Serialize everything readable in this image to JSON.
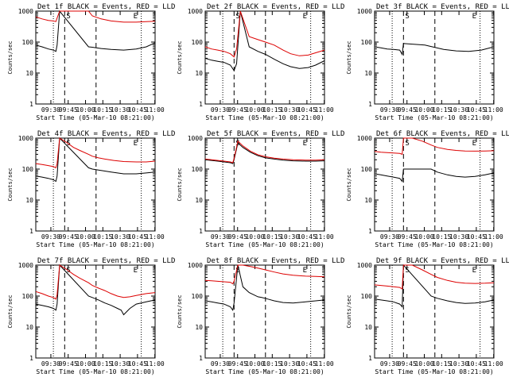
{
  "figure": {
    "ylabel": "Counts/sec",
    "xlabel": "Start Time (05-Mar-10 08:21:00)",
    "xticks": [
      "09:30",
      "09:45",
      "10:00",
      "10:15",
      "10:30",
      "10:45",
      "11:00"
    ],
    "yticks": [
      "1",
      "10",
      "100",
      "1000"
    ],
    "markers": {
      "start": "S",
      "end": "E"
    },
    "colors": {
      "events": "#000000",
      "lld": "#dd0000",
      "axis": "#000000"
    }
  },
  "chart_data": [
    {
      "type": "line",
      "title": "Det 1f BLACK = Events, RED = LLD",
      "xlim": [
        0,
        95
      ],
      "ylim": [
        1,
        1000
      ],
      "yscale": "log",
      "series": [
        {
          "name": "Events",
          "x": [
            0,
            5,
            10,
            14,
            16,
            17,
            19,
            42,
            45,
            52,
            60,
            70,
            80,
            88,
            95
          ],
          "y": [
            80,
            70,
            60,
            55,
            50,
            80,
            1000,
            70,
            68,
            62,
            58,
            55,
            60,
            70,
            95
          ]
        },
        {
          "name": "LLD",
          "x": [
            0,
            5,
            10,
            14,
            16,
            17,
            19,
            42,
            45,
            52,
            60,
            70,
            80,
            88,
            95
          ],
          "y": [
            650,
            560,
            500,
            480,
            460,
            600,
            1000,
            1000,
            700,
            560,
            480,
            440,
            440,
            460,
            470
          ]
        }
      ]
    },
    {
      "type": "line",
      "title": "Det 2f BLACK = Events, RED = LLD",
      "xlim": [
        0,
        95
      ],
      "ylim": [
        1,
        1000
      ],
      "yscale": "log",
      "series": [
        {
          "name": "Events",
          "x": [
            0,
            5,
            10,
            15,
            20,
            23,
            25,
            28,
            35,
            42,
            48,
            55,
            62,
            68,
            75,
            82,
            88,
            95
          ],
          "y": [
            30,
            26,
            24,
            22,
            18,
            12,
            20,
            1000,
            70,
            50,
            40,
            28,
            20,
            16,
            14,
            15,
            18,
            25
          ]
        },
        {
          "name": "LLD",
          "x": [
            0,
            5,
            10,
            15,
            20,
            23,
            25,
            28,
            35,
            42,
            48,
            55,
            62,
            68,
            75,
            82,
            88,
            95
          ],
          "y": [
            70,
            60,
            55,
            50,
            42,
            33,
            60,
            1000,
            150,
            120,
            100,
            80,
            55,
            42,
            36,
            38,
            45,
            55
          ]
        }
      ]
    },
    {
      "type": "line",
      "title": "Det 3f BLACK = Events, RED = LLD",
      "xlim": [
        0,
        95
      ],
      "ylim": [
        1,
        1000
      ],
      "yscale": "log",
      "series": [
        {
          "name": "Events",
          "x": [
            0,
            5,
            10,
            15,
            20,
            22,
            23,
            40,
            45,
            55,
            65,
            75,
            85,
            95
          ],
          "y": [
            70,
            65,
            60,
            58,
            55,
            40,
            90,
            80,
            72,
            58,
            52,
            50,
            55,
            70
          ]
        }
      ]
    },
    {
      "type": "line",
      "title": "Det 4f BLACK = Events, RED = LLD",
      "xlim": [
        0,
        95
      ],
      "ylim": [
        1,
        1000
      ],
      "yscale": "log",
      "series": [
        {
          "name": "Events",
          "x": [
            0,
            5,
            10,
            14,
            16,
            17,
            19,
            42,
            45,
            52,
            60,
            70,
            80,
            88,
            95
          ],
          "y": [
            60,
            55,
            50,
            45,
            40,
            60,
            1000,
            110,
            100,
            90,
            80,
            70,
            70,
            75,
            80
          ]
        },
        {
          "name": "LLD",
          "x": [
            0,
            5,
            10,
            14,
            16,
            17,
            19,
            25,
            30,
            35,
            42,
            45,
            50,
            55,
            62,
            70,
            80,
            88,
            95
          ],
          "y": [
            150,
            140,
            130,
            120,
            110,
            150,
            1000,
            700,
            500,
            400,
            300,
            260,
            230,
            210,
            190,
            175,
            170,
            170,
            180
          ]
        }
      ]
    },
    {
      "type": "line",
      "title": "Det 5f BLACK = Events, RED = LLD",
      "xlim": [
        0,
        95
      ],
      "ylim": [
        1,
        1000
      ],
      "yscale": "log",
      "series": [
        {
          "name": "Events",
          "x": [
            0,
            5,
            10,
            15,
            20,
            22,
            23,
            26,
            30,
            36,
            42,
            48,
            55,
            62,
            70,
            80,
            88,
            95
          ],
          "y": [
            200,
            190,
            180,
            170,
            160,
            150,
            200,
            700,
            500,
            350,
            270,
            230,
            210,
            195,
            185,
            180,
            180,
            185
          ]
        },
        {
          "name": "LLD",
          "x": [
            0,
            5,
            10,
            15,
            20,
            22,
            23,
            26,
            30,
            36,
            42,
            48,
            55,
            62,
            70,
            80,
            88,
            95
          ],
          "y": [
            210,
            200,
            190,
            180,
            170,
            160,
            220,
            800,
            560,
            380,
            290,
            250,
            225,
            210,
            200,
            195,
            195,
            200
          ]
        }
      ]
    },
    {
      "type": "line",
      "title": "Det 6f BLACK = Events, RED = LLD",
      "xlim": [
        0,
        95
      ],
      "ylim": [
        1,
        1000
      ],
      "yscale": "log",
      "series": [
        {
          "name": "Events",
          "x": [
            0,
            5,
            10,
            15,
            20,
            22,
            23,
            45,
            50,
            58,
            65,
            72,
            80,
            88,
            95
          ],
          "y": [
            70,
            65,
            60,
            55,
            50,
            40,
            100,
            100,
            80,
            65,
            58,
            55,
            58,
            65,
            75
          ]
        },
        {
          "name": "LLD",
          "x": [
            0,
            5,
            10,
            15,
            20,
            22,
            23,
            30,
            38,
            45,
            50,
            58,
            65,
            72,
            80,
            88,
            95
          ],
          "y": [
            370,
            350,
            340,
            330,
            320,
            300,
            1000,
            1000,
            800,
            600,
            500,
            430,
            400,
            385,
            380,
            385,
            390
          ]
        }
      ]
    },
    {
      "type": "line",
      "title": "Det 7f BLACK = Events, RED = LLD",
      "xlim": [
        0,
        95
      ],
      "ylim": [
        1,
        1000
      ],
      "yscale": "log",
      "series": [
        {
          "name": "Events",
          "x": [
            0,
            5,
            10,
            14,
            16,
            17,
            19,
            42,
            45,
            50,
            55,
            60,
            65,
            68,
            70,
            75,
            80,
            88,
            95
          ],
          "y": [
            55,
            50,
            45,
            40,
            35,
            55,
            1000,
            100,
            90,
            75,
            60,
            50,
            40,
            35,
            25,
            40,
            55,
            65,
            75
          ]
        },
        {
          "name": "LLD",
          "x": [
            0,
            5,
            10,
            14,
            16,
            17,
            19,
            25,
            30,
            35,
            42,
            45,
            50,
            55,
            60,
            65,
            70,
            75,
            80,
            88,
            95
          ],
          "y": [
            140,
            120,
            100,
            90,
            80,
            110,
            1000,
            700,
            500,
            380,
            270,
            220,
            180,
            150,
            120,
            100,
            90,
            95,
            105,
            120,
            130
          ]
        }
      ]
    },
    {
      "type": "line",
      "title": "Det 8f BLACK = Events, RED = LLD",
      "xlim": [
        0,
        95
      ],
      "ylim": [
        1,
        1000
      ],
      "yscale": "log",
      "series": [
        {
          "name": "Events",
          "x": [
            0,
            5,
            10,
            15,
            20,
            22,
            23,
            26,
            30,
            35,
            42,
            45,
            50,
            55,
            62,
            70,
            80,
            88,
            95
          ],
          "y": [
            70,
            65,
            60,
            55,
            45,
            35,
            60,
            1000,
            200,
            130,
            95,
            90,
            80,
            70,
            62,
            60,
            65,
            70,
            75
          ]
        },
        {
          "name": "LLD",
          "x": [
            0,
            5,
            10,
            15,
            20,
            22,
            23,
            26,
            30,
            36,
            42,
            48,
            55,
            62,
            70,
            80,
            88,
            95
          ],
          "y": [
            320,
            310,
            300,
            290,
            280,
            250,
            300,
            1000,
            1000,
            900,
            800,
            700,
            600,
            520,
            470,
            440,
            430,
            420
          ]
        }
      ]
    },
    {
      "type": "line",
      "title": "Det 9f BLACK = Events, RED = LLD",
      "xlim": [
        0,
        95
      ],
      "ylim": [
        1,
        1000
      ],
      "yscale": "log",
      "series": [
        {
          "name": "Events",
          "x": [
            0,
            5,
            10,
            15,
            20,
            22,
            23,
            45,
            50,
            58,
            65,
            72,
            80,
            88,
            95
          ],
          "y": [
            80,
            75,
            70,
            65,
            55,
            45,
            1000,
            100,
            85,
            70,
            62,
            58,
            60,
            65,
            75
          ]
        },
        {
          "name": "LLD",
          "x": [
            0,
            5,
            10,
            15,
            20,
            22,
            23,
            30,
            38,
            45,
            50,
            58,
            65,
            72,
            80,
            88,
            95
          ],
          "y": [
            230,
            220,
            210,
            200,
            190,
            170,
            1000,
            1000,
            700,
            500,
            400,
            320,
            280,
            260,
            255,
            260,
            270
          ]
        }
      ]
    }
  ]
}
